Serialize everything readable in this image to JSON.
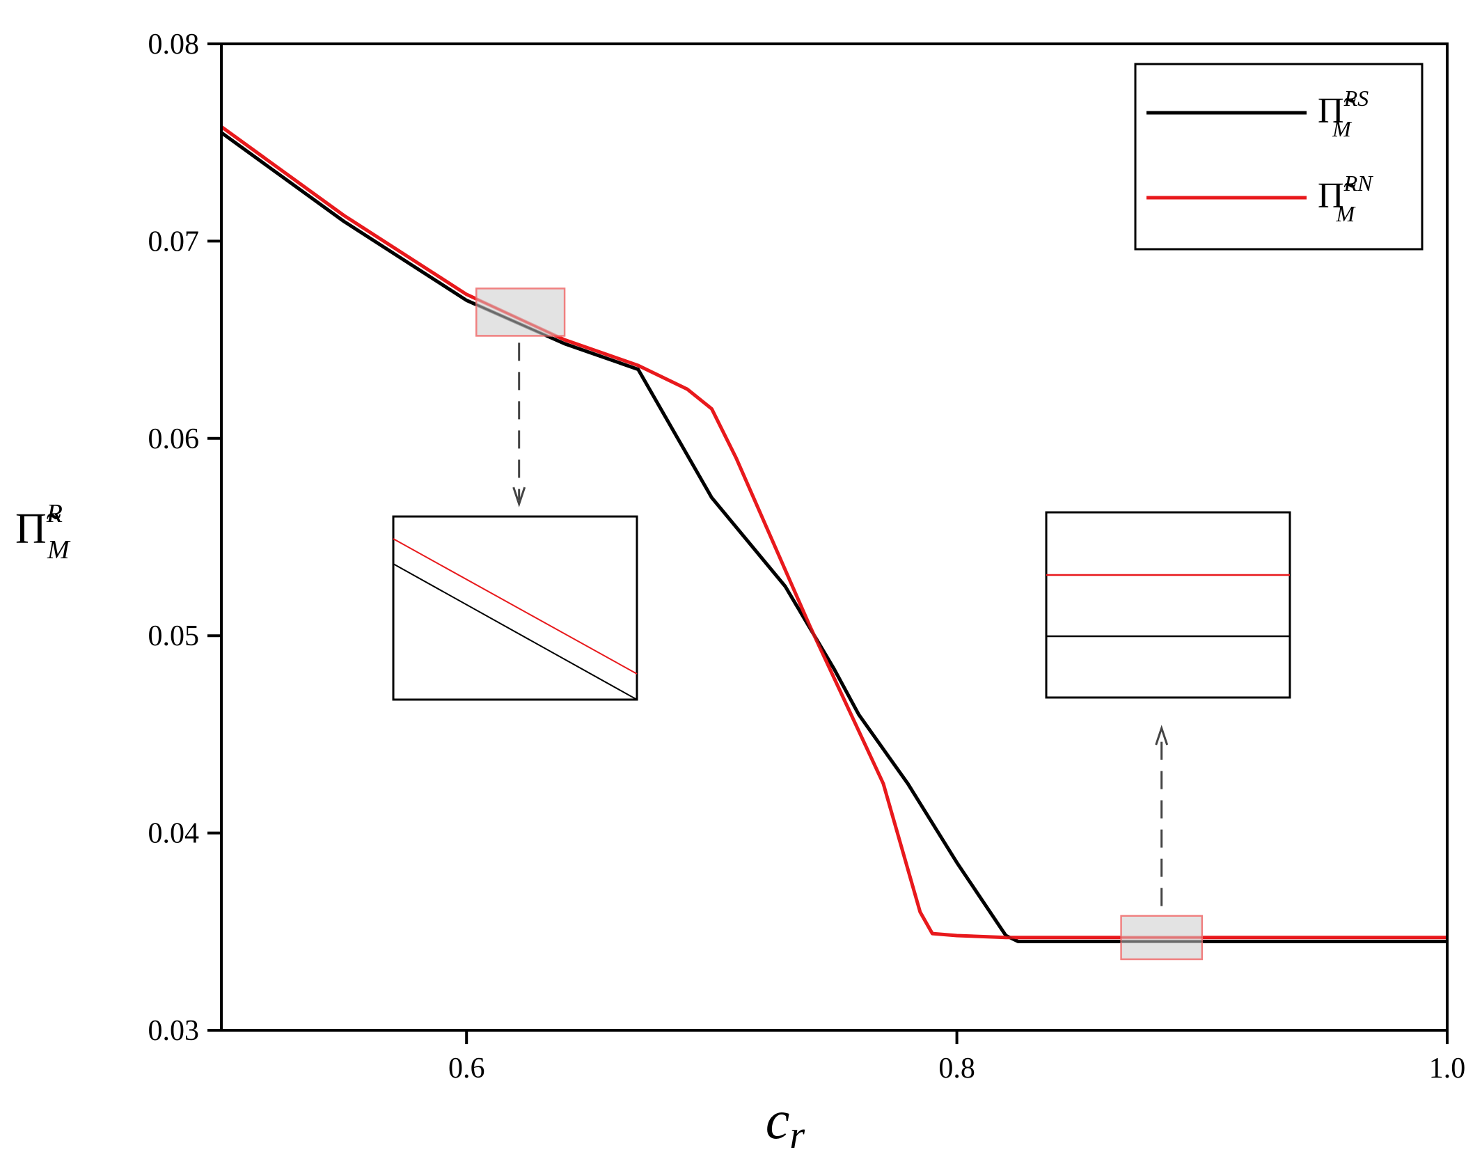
{
  "chart_data": {
    "type": "line",
    "xlabel": {
      "main": "c",
      "sub": "r"
    },
    "ylabel": {
      "main": "Π̃",
      "sup": "R",
      "sub": "M"
    },
    "xlim": [
      0.5,
      1.0
    ],
    "ylim": [
      0.03,
      0.08
    ],
    "xticks": [
      "0.6",
      "0.8",
      "1.0"
    ],
    "xtick_values": [
      0.6,
      0.8,
      1.0
    ],
    "yticks": [
      "0.03",
      "0.04",
      "0.05",
      "0.06",
      "0.07",
      "0.08"
    ],
    "ytick_values": [
      0.03,
      0.04,
      0.05,
      0.06,
      0.07,
      0.08
    ],
    "legend_position": "top-right",
    "grid": false,
    "series": [
      {
        "legend": {
          "main": "Π̃",
          "sup": "RS",
          "sub": "M"
        },
        "color": "#000000",
        "x": [
          0.5,
          0.55,
          0.6,
          0.64,
          0.67,
          0.7,
          0.73,
          0.75,
          0.76,
          0.78,
          0.8,
          0.82,
          0.825,
          1.0
        ],
        "y": [
          0.0755,
          0.071,
          0.067,
          0.0648,
          0.0635,
          0.057,
          0.0525,
          0.0483,
          0.046,
          0.0425,
          0.0385,
          0.0348,
          0.0345,
          0.0345
        ]
      },
      {
        "legend": {
          "main": "Π̃",
          "sup": "RN",
          "sub": "M"
        },
        "color": "#e8191c",
        "x": [
          0.5,
          0.55,
          0.6,
          0.64,
          0.67,
          0.69,
          0.7,
          0.71,
          0.74,
          0.77,
          0.785,
          0.79,
          0.8,
          0.82,
          1.0
        ],
        "y": [
          0.0758,
          0.0713,
          0.0673,
          0.065,
          0.0637,
          0.0625,
          0.0615,
          0.059,
          0.0505,
          0.0425,
          0.036,
          0.0349,
          0.0348,
          0.0347,
          0.0347
        ]
      }
    ],
    "zoom_regions": [
      {
        "x_range": [
          0.604,
          0.64
        ],
        "y_range": [
          0.0652,
          0.0676
        ],
        "inset": "left"
      },
      {
        "x_range": [
          0.867,
          0.9
        ],
        "y_range": [
          0.0336,
          0.0358
        ],
        "inset": "right"
      }
    ],
    "colors": {
      "axis": "#000000",
      "zoom_box_fill": "#d9d9d9",
      "zoom_box_stroke": "#f08080",
      "arrow": "#444444"
    }
  }
}
